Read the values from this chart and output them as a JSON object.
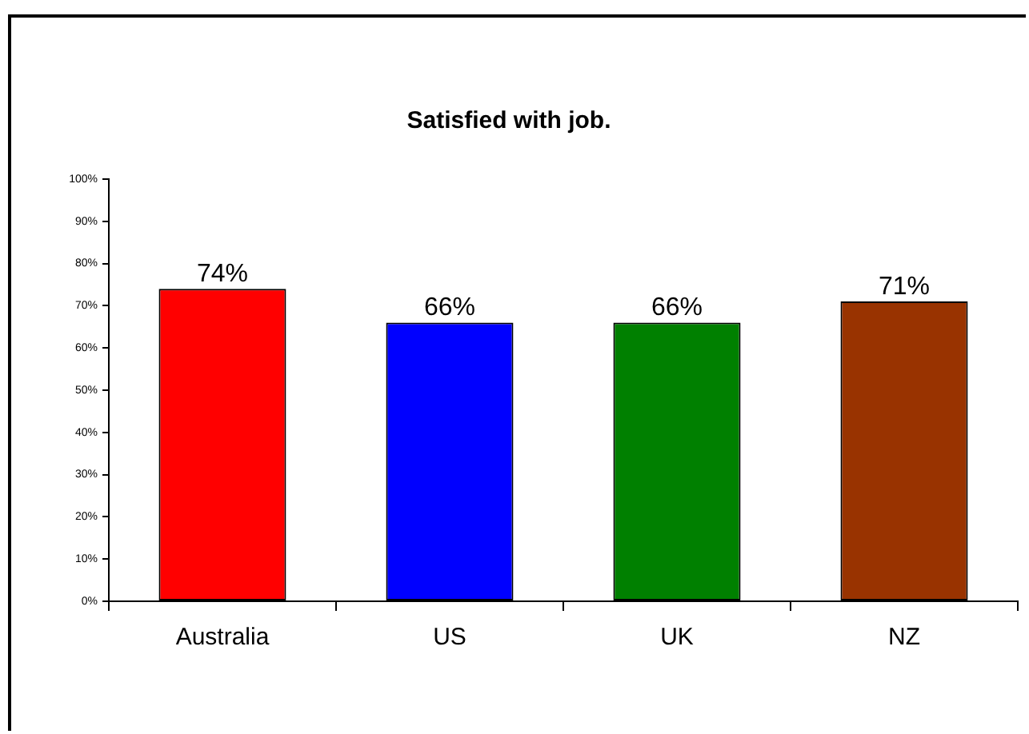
{
  "chart_data": {
    "type": "bar",
    "title": "Satisfied with job.",
    "categories": [
      "Australia",
      "US",
      "UK",
      "NZ"
    ],
    "values": [
      74,
      66,
      66,
      71
    ],
    "colors": [
      "#ff0000",
      "#0000ff",
      "#008000",
      "#993300"
    ],
    "value_labels": [
      "74%",
      "66%",
      "66%",
      "71%"
    ],
    "ylim": [
      0,
      100
    ],
    "yticks": [
      {
        "value": 0,
        "label": "0%"
      },
      {
        "value": 10,
        "label": "10%"
      },
      {
        "value": 20,
        "label": "20%"
      },
      {
        "value": 30,
        "label": "30%"
      },
      {
        "value": 40,
        "label": "40%"
      },
      {
        "value": 50,
        "label": "50%"
      },
      {
        "value": 60,
        "label": "60%"
      },
      {
        "value": 70,
        "label": "70%"
      },
      {
        "value": 80,
        "label": "80%"
      },
      {
        "value": 90,
        "label": "90%"
      },
      {
        "value": 100,
        "label": "100%"
      }
    ]
  }
}
